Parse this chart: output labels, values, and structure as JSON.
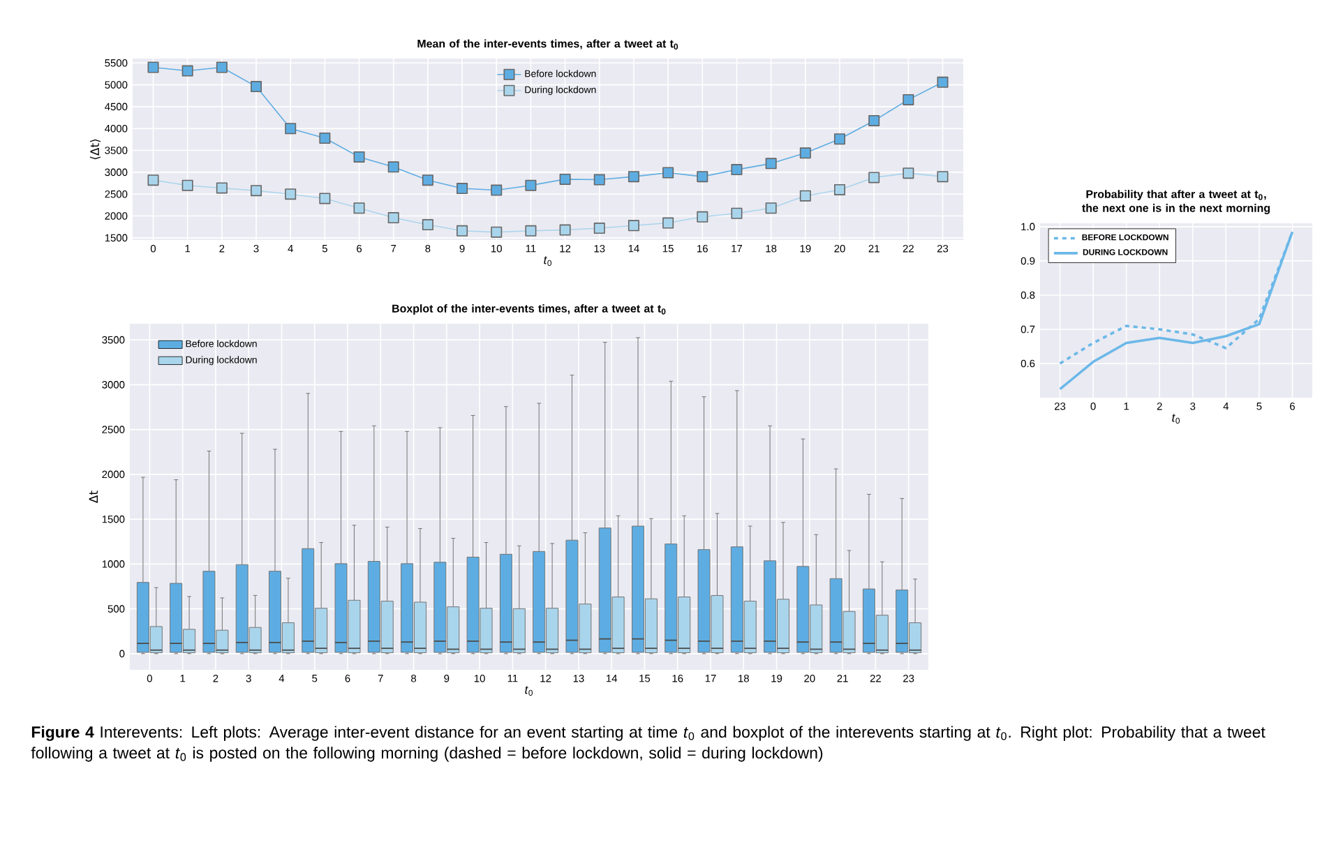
{
  "chart_data": [
    {
      "type": "line",
      "title": "Mean of the inter-events times, after a tweet at t$_{0}$",
      "xlabel": "*t*$_{0}$",
      "ylabel": "⟨Δt⟩",
      "categories": [
        "0",
        "1",
        "2",
        "3",
        "4",
        "5",
        "6",
        "7",
        "8",
        "9",
        "10",
        "11",
        "12",
        "13",
        "14",
        "15",
        "16",
        "17",
        "18",
        "19",
        "20",
        "21",
        "22",
        "23"
      ],
      "series": [
        {
          "name": "Before lockdown",
          "color": "#5dade2",
          "values": [
            5400,
            5320,
            5400,
            4960,
            4000,
            3780,
            3350,
            3120,
            2820,
            2630,
            2590,
            2700,
            2840,
            2830,
            2900,
            2990,
            2900,
            3060,
            3200,
            3440,
            3760,
            4180,
            4660,
            5060
          ]
        },
        {
          "name": "During lockdown",
          "color": "#a9d5ec",
          "values": [
            2820,
            2700,
            2640,
            2580,
            2500,
            2400,
            2180,
            1960,
            1800,
            1660,
            1630,
            1660,
            1680,
            1720,
            1780,
            1840,
            1980,
            2060,
            2180,
            2460,
            2600,
            2880,
            2980,
            2900
          ]
        }
      ],
      "ylim": [
        1450,
        5600
      ],
      "yticks": [
        1500,
        2000,
        2500,
        3000,
        3500,
        4000,
        4500,
        5000,
        5500
      ],
      "grid": true,
      "legend": "top",
      "marker": "square",
      "annotations": [
        "**Figure 4** Interevents: Left plots: Average inter-event distance for an event starting at time *t*$_{0}$ and boxplot of the interevents starting at *t*$_{0}$. Right plot: Probability that a tweet following a tweet at *t*$_{0}$ is posted on the following morning (dashed = before lockdown, solid = during lockdown)"
      ]
    },
    {
      "type": "box",
      "title": "Boxplot of the inter-events times, after a tweet at t$_{0}$",
      "xlabel": "*t*$_{0}$",
      "ylabel": "Δt",
      "categories": [
        "0",
        "1",
        "2",
        "3",
        "4",
        "5",
        "6",
        "7",
        "8",
        "9",
        "10",
        "11",
        "12",
        "13",
        "14",
        "15",
        "16",
        "17",
        "18",
        "19",
        "20",
        "21",
        "22",
        "23"
      ],
      "series": [
        {
          "name": "Before lockdown",
          "color": "#5dade2",
          "boxes": [
            {
              "low": 0,
              "q1": 15,
              "median": 115,
              "q3": 795,
              "high": 1967
            },
            {
              "low": 0,
              "q1": 15,
              "median": 115,
              "q3": 785,
              "high": 1940
            },
            {
              "low": 0,
              "q1": 15,
              "median": 115,
              "q3": 920,
              "high": 2260
            },
            {
              "low": 0,
              "q1": 15,
              "median": 125,
              "q3": 994,
              "high": 2458
            },
            {
              "low": 0,
              "q1": 15,
              "median": 125,
              "q3": 920,
              "high": 2280
            },
            {
              "low": 0,
              "q1": 15,
              "median": 140,
              "q3": 1172,
              "high": 2903
            },
            {
              "low": 0,
              "q1": 15,
              "median": 125,
              "q3": 1004,
              "high": 2479
            },
            {
              "low": 0,
              "q1": 15,
              "median": 140,
              "q3": 1030,
              "high": 2542
            },
            {
              "low": 0,
              "q1": 15,
              "median": 130,
              "q3": 1004,
              "high": 2479
            },
            {
              "low": 0,
              "q1": 15,
              "median": 140,
              "q3": 1020,
              "high": 2521
            },
            {
              "low": 0,
              "q1": 15,
              "median": 140,
              "q3": 1077,
              "high": 2657
            },
            {
              "low": 0,
              "q1": 15,
              "median": 130,
              "q3": 1109,
              "high": 2756
            },
            {
              "low": 0,
              "q1": 15,
              "median": 130,
              "q3": 1140,
              "high": 2793
            },
            {
              "low": 0,
              "q1": 15,
              "median": 150,
              "q3": 1266,
              "high": 3107
            },
            {
              "low": 0,
              "q1": 15,
              "median": 165,
              "q3": 1402,
              "high": 3473
            },
            {
              "low": 0,
              "q1": 15,
              "median": 165,
              "q3": 1423,
              "high": 3525
            },
            {
              "low": 0,
              "q1": 15,
              "median": 150,
              "q3": 1224,
              "high": 3039
            },
            {
              "low": 0,
              "q1": 15,
              "median": 140,
              "q3": 1161,
              "high": 2866
            },
            {
              "low": 0,
              "q1": 15,
              "median": 140,
              "q3": 1192,
              "high": 2934
            },
            {
              "low": 0,
              "q1": 15,
              "median": 140,
              "q3": 1036,
              "high": 2542
            },
            {
              "low": 0,
              "q1": 15,
              "median": 130,
              "q3": 973,
              "high": 2395
            },
            {
              "low": 0,
              "q1": 15,
              "median": 130,
              "q3": 837,
              "high": 2061
            },
            {
              "low": 0,
              "q1": 15,
              "median": 115,
              "q3": 722,
              "high": 1778
            },
            {
              "low": 0,
              "q1": 15,
              "median": 115,
              "q3": 711,
              "high": 1731
            }
          ]
        },
        {
          "name": "During lockdown",
          "color": "#a9d5ec",
          "boxes": [
            {
              "low": 0,
              "q1": 10,
              "median": 40,
              "q3": 303,
              "high": 737
            },
            {
              "low": 0,
              "q1": 10,
              "median": 40,
              "q3": 272,
              "high": 638
            },
            {
              "low": 0,
              "q1": 10,
              "median": 40,
              "q3": 262,
              "high": 622
            },
            {
              "low": 0,
              "q1": 10,
              "median": 40,
              "q3": 293,
              "high": 650
            },
            {
              "low": 0,
              "q1": 10,
              "median": 40,
              "q3": 345,
              "high": 842
            },
            {
              "low": 0,
              "q1": 10,
              "median": 60,
              "q3": 507,
              "high": 1240
            },
            {
              "low": 0,
              "q1": 10,
              "median": 60,
              "q3": 596,
              "high": 1433
            },
            {
              "low": 0,
              "q1": 10,
              "median": 60,
              "q3": 586,
              "high": 1412
            },
            {
              "low": 0,
              "q1": 10,
              "median": 60,
              "q3": 575,
              "high": 1396
            },
            {
              "low": 0,
              "q1": 10,
              "median": 50,
              "q3": 523,
              "high": 1287
            },
            {
              "low": 0,
              "q1": 10,
              "median": 50,
              "q3": 507,
              "high": 1240
            },
            {
              "low": 0,
              "q1": 10,
              "median": 50,
              "q3": 502,
              "high": 1203
            },
            {
              "low": 0,
              "q1": 10,
              "median": 50,
              "q3": 507,
              "high": 1229
            },
            {
              "low": 0,
              "q1": 10,
              "median": 50,
              "q3": 554,
              "high": 1349
            },
            {
              "low": 0,
              "q1": 10,
              "median": 60,
              "q3": 633,
              "high": 1538
            },
            {
              "low": 0,
              "q1": 10,
              "median": 60,
              "q3": 612,
              "high": 1506
            },
            {
              "low": 0,
              "q1": 10,
              "median": 60,
              "q3": 633,
              "high": 1538
            },
            {
              "low": 0,
              "q1": 10,
              "median": 60,
              "q3": 649,
              "high": 1564
            },
            {
              "low": 0,
              "q1": 10,
              "median": 60,
              "q3": 586,
              "high": 1423
            },
            {
              "low": 0,
              "q1": 10,
              "median": 60,
              "q3": 607,
              "high": 1464
            },
            {
              "low": 0,
              "q1": 10,
              "median": 50,
              "q3": 544,
              "high": 1328
            },
            {
              "low": 0,
              "q1": 10,
              "median": 50,
              "q3": 471,
              "high": 1151
            },
            {
              "low": 0,
              "q1": 10,
              "median": 40,
              "q3": 429,
              "high": 1025
            },
            {
              "low": 0,
              "q1": 10,
              "median": 40,
              "q3": 345,
              "high": 832
            }
          ]
        }
      ],
      "ylim": [
        -180,
        3680
      ],
      "yticks": [
        0,
        500,
        1000,
        1500,
        2000,
        2500,
        3000,
        3500
      ],
      "grid": true,
      "legend": "top left"
    },
    {
      "type": "line",
      "title": "Probability that after a tweet at t$_{0}$, the next one is in the next morning",
      "xlabel": "*t*$_{0}$",
      "categories": [
        "23",
        "0",
        "1",
        "2",
        "3",
        "4",
        "5",
        "6"
      ],
      "series": [
        {
          "name": "BEFORE LOCKDOWN",
          "color": "#6bb8e8",
          "line_style": "dashed",
          "values": [
            0.6,
            0.66,
            0.71,
            0.7,
            0.685,
            0.645,
            0.73,
            0.985
          ]
        },
        {
          "name": "DURING LOCKDOWN",
          "color": "#6bb8e8",
          "line_style": "solid",
          "values": [
            0.525,
            0.605,
            0.66,
            0.675,
            0.66,
            0.68,
            0.715,
            0.985
          ]
        }
      ],
      "ylim": [
        0.5,
        1.01
      ],
      "yticks": [
        0.6,
        0.7,
        0.8,
        0.9,
        {
          "value": 1,
          "label": "1.0"
        }
      ],
      "grid": true,
      "legend": "top left"
    }
  ]
}
